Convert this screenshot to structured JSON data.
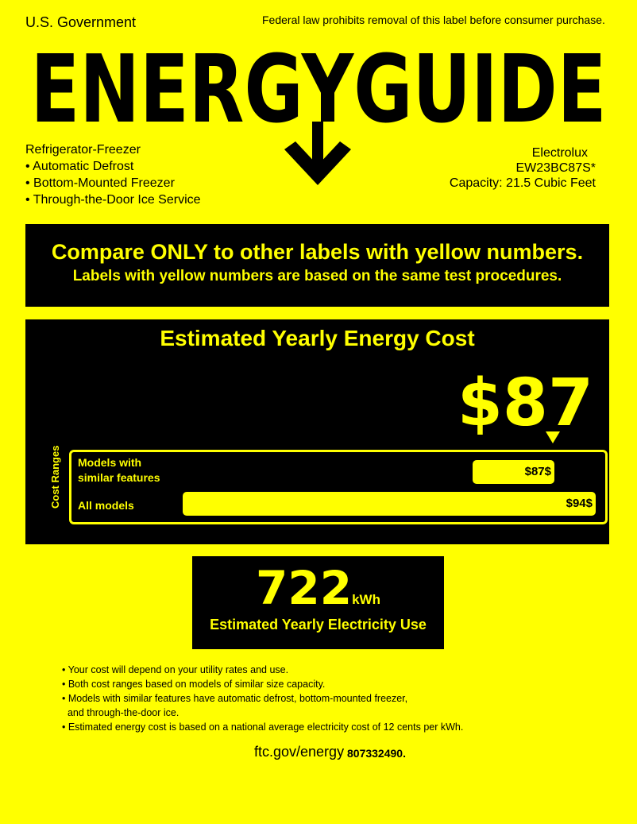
{
  "header": {
    "government": "U.S. Government",
    "law_notice": "Federal law prohibits removal of this label before consumer purchase.",
    "logo_text": "ENERGYGUIDE"
  },
  "product": {
    "type": "Refrigerator-Freezer",
    "features": [
      "• Automatic Defrost",
      "• Bottom-Mounted Freezer",
      "• Through-the-Door Ice Service"
    ],
    "brand": "Electrolux",
    "model": "EW23BC87S*",
    "capacity": "Capacity: 21.5 Cubic Feet"
  },
  "compare": {
    "line1": "Compare ONLY to other labels with yellow numbers.",
    "line2": "Labels with yellow numbers are based on the same test procedures."
  },
  "cost": {
    "title": "Estimated Yearly Energy Cost",
    "value": "$87",
    "ranges_label": "Cost Ranges",
    "similar": {
      "label_1": "Models with",
      "label_2": "similar features",
      "high": "$87$"
    },
    "all": {
      "label": "All models",
      "high": "$94$"
    }
  },
  "electricity": {
    "value": "722",
    "unit": "kWh",
    "label": "Estimated Yearly Electricity Use"
  },
  "notes": [
    "• Your cost will depend on your utility rates and use.",
    "• Both cost ranges based on models of similar size capacity.",
    "• Models with similar features have automatic defrost, bottom-mounted freezer,",
    "  and through-the-door ice.",
    "• Estimated energy cost is based on a national average electricity cost of 12 cents per kWh."
  ],
  "footer": {
    "url": "ftc.gov/energy",
    "part_number": "807332490."
  },
  "colors": {
    "label": "#ffff00",
    "panel": "#000000"
  }
}
